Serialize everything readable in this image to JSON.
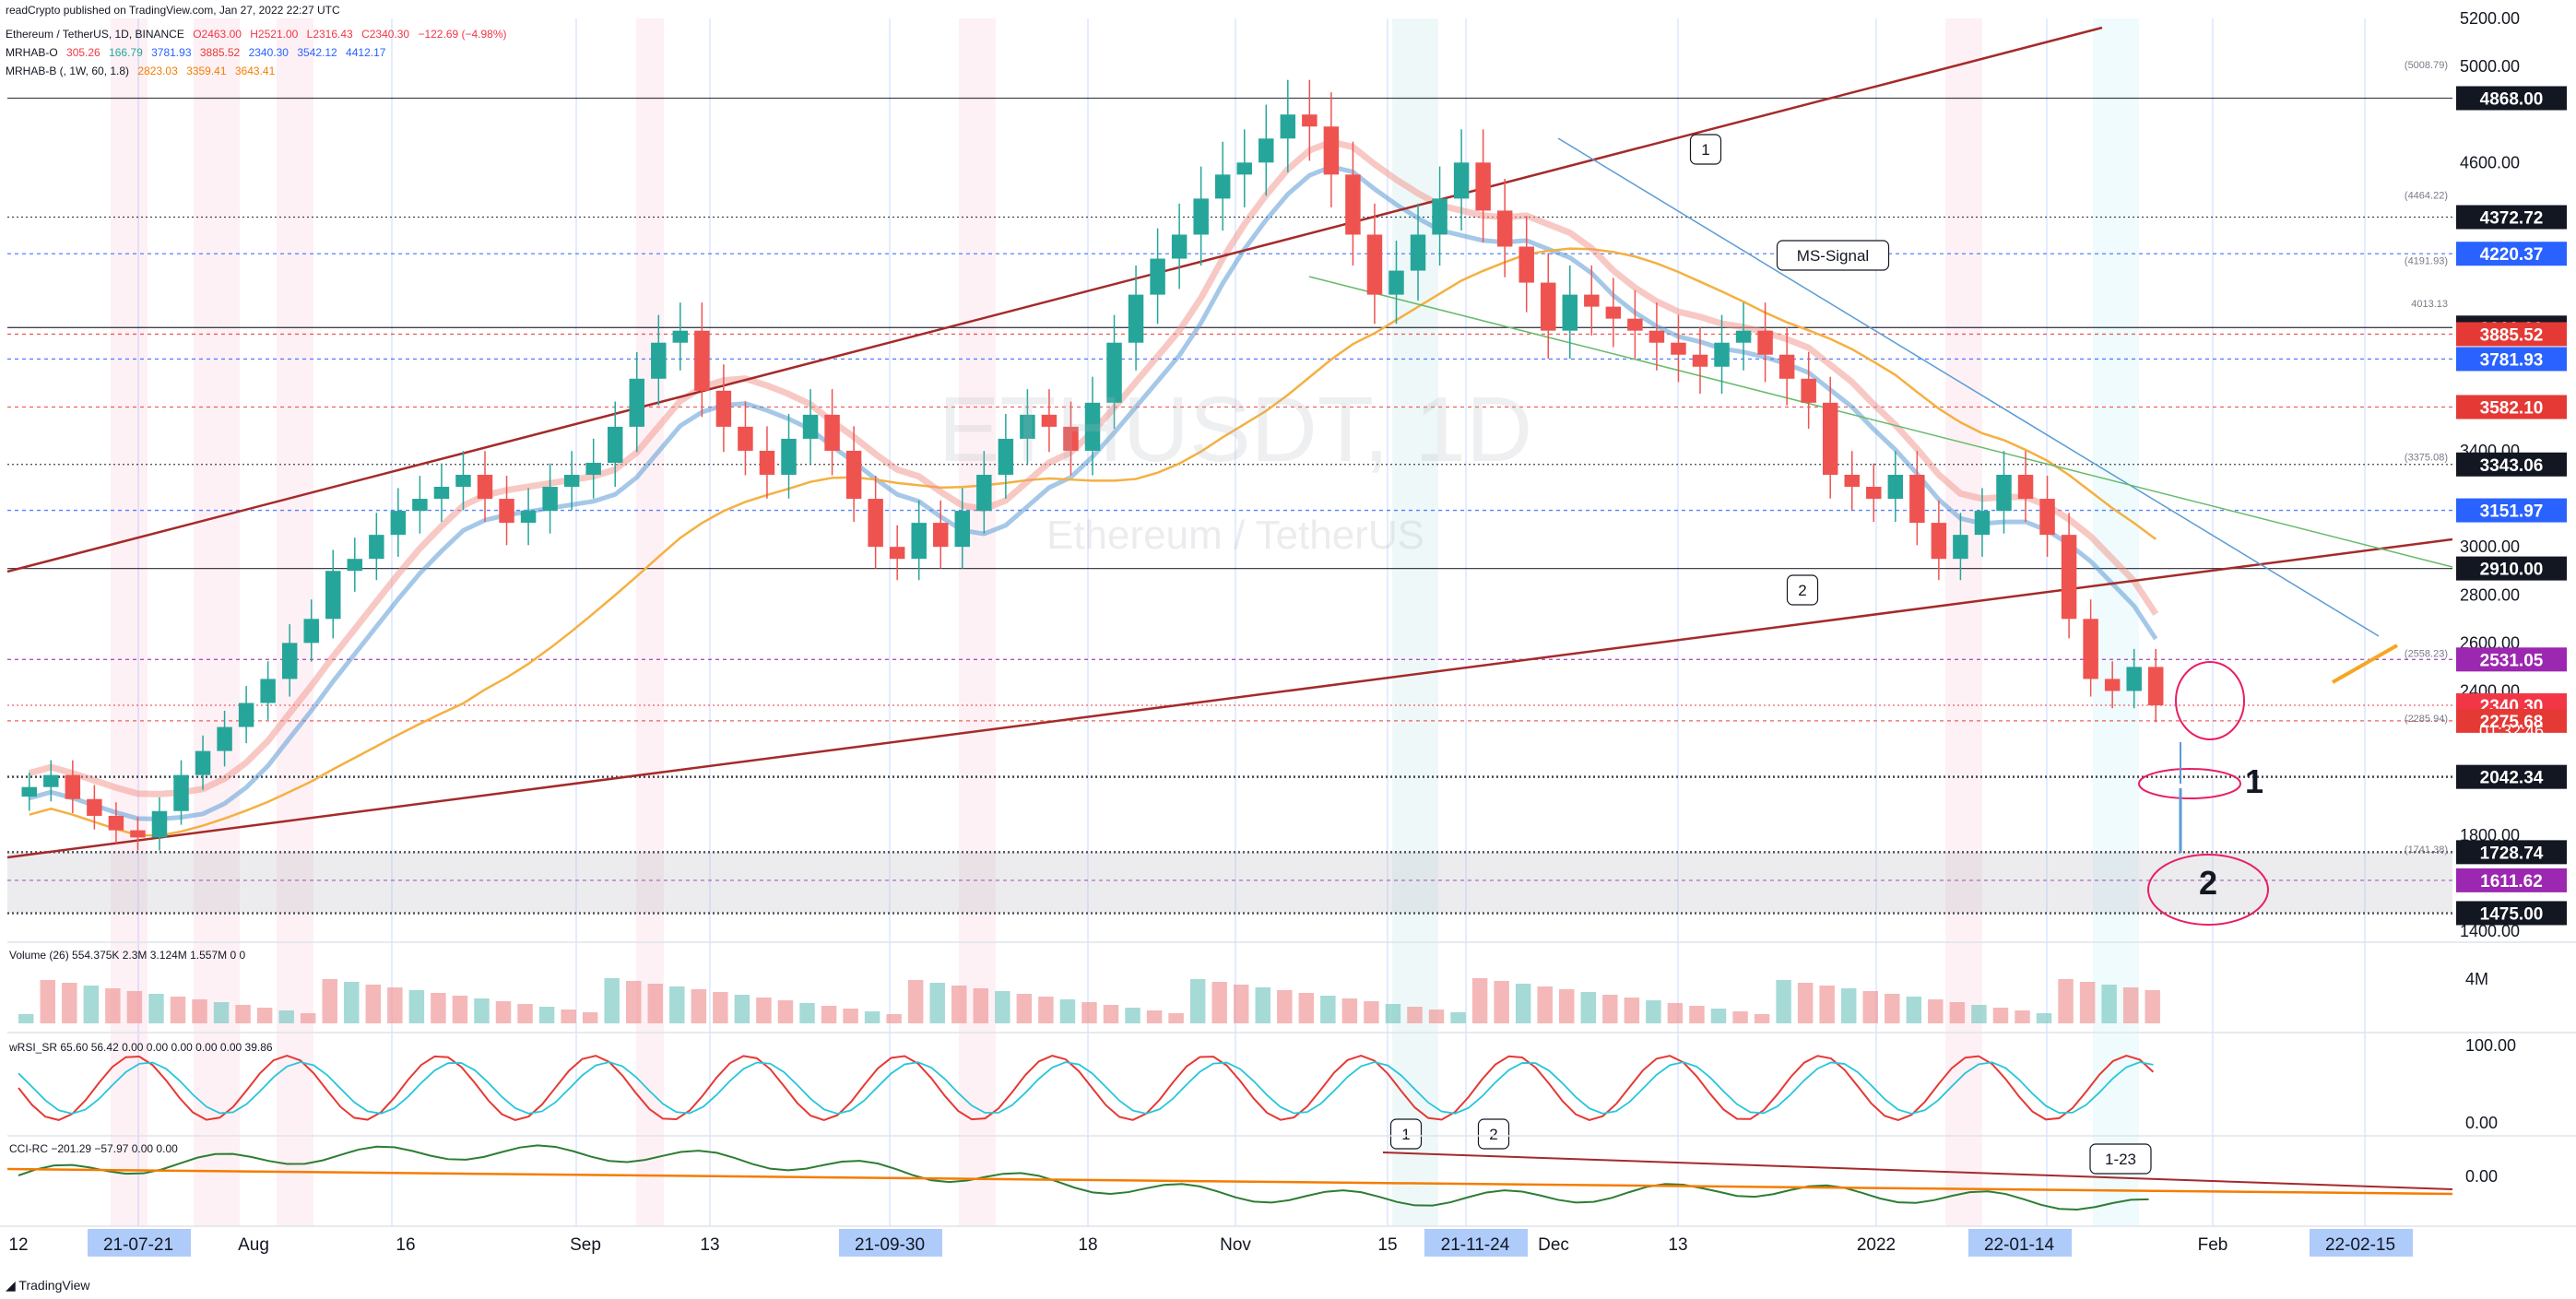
{
  "header": {
    "published": "readCrypto published on TradingView.com, Jan 27, 2022 22:27 UTC",
    "symbol_line": {
      "label": "Ethereum / TetherUS, 1D, BINANCE",
      "o": "O2463.00",
      "h": "H2521.00",
      "l": "L2316.43",
      "c": "C2340.30",
      "chg": "−122.69 (−4.98%)"
    },
    "ind1": {
      "label": "MRHAB-O",
      "vals": [
        "305.26",
        "166.79",
        "3781.93",
        "3885.52",
        "2340.30",
        "3542.12",
        "4412.17"
      ]
    },
    "ind2": {
      "label": "MRHAB-B (, 1W, 60, 1.8)",
      "vals": [
        "2823.03",
        "3359.41",
        "3643.41"
      ]
    }
  },
  "watermark": {
    "ticker": "ETHUSDT, 1D",
    "name": "Ethereum / TetherUS"
  },
  "chart_data": {
    "type": "candlestick",
    "symbol": "ETHUSDT",
    "interval": "1D",
    "exchange": "BINANCE",
    "ylim": [
      1400,
      5200
    ],
    "y_ticks": [
      "5200.00",
      "5000.00",
      "4600.00",
      "3400.00",
      "3000.00",
      "2800.00",
      "2600.00",
      "2400.00",
      "1800.00",
      "1400.00"
    ],
    "x_ticks": [
      "12",
      "21-07-21",
      "Aug",
      "16",
      "Sep",
      "13",
      "21-09-30",
      "18",
      "Nov",
      "15",
      "21-11-24",
      "Dec",
      "13",
      "2022",
      "22-01-14",
      "Feb",
      "22-02-15"
    ],
    "price_labels": [
      {
        "value": 4868.0,
        "text": "4868.00",
        "color": "#131722"
      },
      {
        "value": 4372.72,
        "text": "4372.72",
        "color": "#131722"
      },
      {
        "value": 4220.37,
        "text": "4220.37",
        "color": "#2962ff"
      },
      {
        "value": 3913.0,
        "text": "3913.00",
        "color": "#131722"
      },
      {
        "value": 3885.52,
        "text": "3885.52",
        "color": "#e53935"
      },
      {
        "value": 3781.93,
        "text": "3781.93",
        "color": "#2962ff"
      },
      {
        "value": 3582.1,
        "text": "3582.10",
        "color": "#e53935"
      },
      {
        "value": 3343.06,
        "text": "3343.06",
        "color": "#131722"
      },
      {
        "value": 3151.97,
        "text": "3151.97",
        "color": "#2962ff"
      },
      {
        "value": 2910.0,
        "text": "2910.00",
        "color": "#131722"
      },
      {
        "value": 2531.05,
        "text": "2531.05",
        "color": "#9c27b0"
      },
      {
        "value": 2340.3,
        "text": "2340.30",
        "color": "#f23645"
      },
      {
        "value": 2275.68,
        "text": "2275.68",
        "color": "#e53935"
      },
      {
        "value": 2042.34,
        "text": "2042.34",
        "color": "#131722"
      },
      {
        "value": 1728.74,
        "text": "1728.74",
        "color": "#131722"
      },
      {
        "value": 1611.62,
        "text": "1611.62",
        "color": "#9c27b0"
      },
      {
        "value": 1475.0,
        "text": "1475.00",
        "color": "#131722"
      }
    ],
    "countdown": "01:32:46",
    "small_labels": [
      {
        "value": 5008.79,
        "text": "(5008.79)"
      },
      {
        "value": 4464.22,
        "text": "(4464.22)"
      },
      {
        "value": 4191.93,
        "text": "(4191.93)"
      },
      {
        "value": 4013.13,
        "text": "4013.13"
      },
      {
        "value": 3375.08,
        "text": "(3375.08)"
      },
      {
        "value": 2558.23,
        "text": "(2558.23)"
      },
      {
        "value": 2285.94,
        "text": "(2285.94)"
      },
      {
        "value": 1741.38,
        "text": "(1741.38)"
      }
    ],
    "annotations": [
      "1",
      "2",
      "MS-Signal",
      "1",
      "2",
      "1-23"
    ],
    "target_labels": [
      "1",
      "2"
    ],
    "close": [
      2000,
      2050,
      1950,
      1880,
      1820,
      1790,
      1900,
      2050,
      2150,
      2250,
      2350,
      2450,
      2600,
      2700,
      2900,
      2950,
      3050,
      3150,
      3200,
      3250,
      3300,
      3200,
      3100,
      3150,
      3250,
      3300,
      3350,
      3500,
      3700,
      3850,
      3900,
      3650,
      3500,
      3400,
      3300,
      3450,
      3550,
      3400,
      3200,
      3000,
      2950,
      3100,
      3000,
      3150,
      3300,
      3450,
      3550,
      3500,
      3400,
      3600,
      3850,
      4050,
      4200,
      4300,
      4450,
      4550,
      4600,
      4700,
      4800,
      4750,
      4550,
      4300,
      4050,
      4150,
      4300,
      4450,
      4600,
      4400,
      4250,
      4100,
      3900,
      4050,
      4000,
      3950,
      3900,
      3850,
      3800,
      3750,
      3850,
      3900,
      3800,
      3700,
      3600,
      3300,
      3250,
      3200,
      3300,
      3100,
      2950,
      3050,
      3150,
      3300,
      3200,
      3050,
      2700,
      2450,
      2400,
      2500,
      2340
    ],
    "panels": {
      "volume": {
        "label": "Volume (26)",
        "vals": [
          "554.375K",
          "2.3M",
          "3.124M",
          "1.557M",
          "0",
          "0"
        ],
        "scale_label": "4M"
      },
      "wrsi": {
        "label": "wRSI_SR",
        "vals": [
          "65.60",
          "56.42",
          "0.00",
          "0.00",
          "0.00",
          "0.00",
          "0.00",
          "39.86"
        ],
        "scale": [
          "100.00",
          "0.00"
        ]
      },
      "cci": {
        "label": "CCI-RC",
        "vals": [
          "−201.29",
          "−57.97",
          "0.00",
          "0.00"
        ],
        "scale": [
          "0.00"
        ]
      }
    }
  },
  "footer": {
    "logo_text": "TradingView"
  }
}
